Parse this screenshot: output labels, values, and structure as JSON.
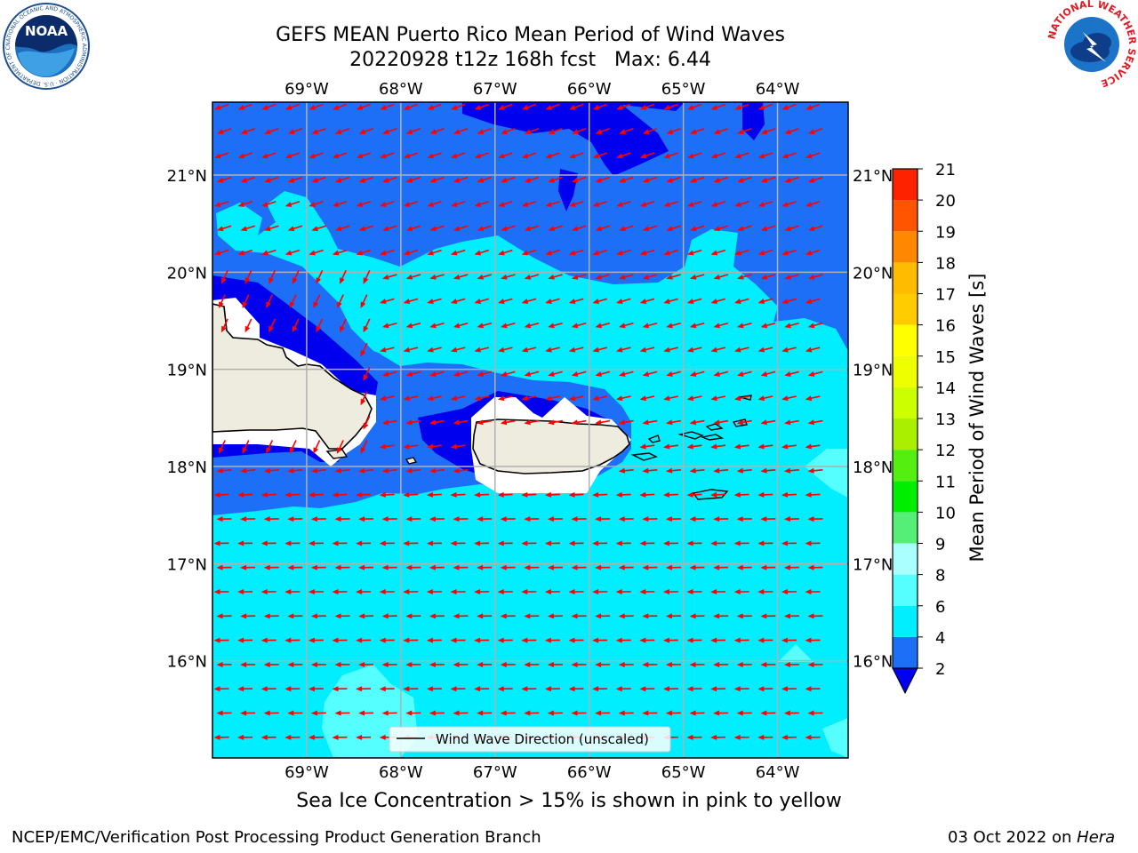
{
  "title": {
    "line1": "GEFS MEAN Puerto Rico Mean Period of Wind Waves",
    "line2": "20220928 t12z 168h fcst   Max: 6.44"
  },
  "map": {
    "lon_labels": [
      "69°W",
      "68°W",
      "67°W",
      "66°W",
      "65°W",
      "64°W"
    ],
    "lat_labels": [
      "21°N",
      "20°N",
      "19°N",
      "18°N",
      "17°N",
      "16°N"
    ],
    "lon_range": [
      -70.0,
      -63.25
    ],
    "lat_range": [
      15.0,
      21.75
    ],
    "legend_label": "Wind Wave Direction (unscaled)",
    "colors": {
      "ocean_2_4": "#1e6ff8",
      "ocean_4_6": "#00eeff",
      "ocean_6_8": "#55ffff",
      "band_low": "#0000ee",
      "land": "#eeecdf",
      "arrow": "#ff0000"
    }
  },
  "colorbar": {
    "label": "Mean Period of Wind Waves [s]",
    "ticks": [
      "2",
      "4",
      "6",
      "8",
      "9",
      "10",
      "11",
      "12",
      "13",
      "14",
      "15",
      "16",
      "17",
      "18",
      "19",
      "20",
      "21"
    ],
    "colors": [
      "#1e6ff8",
      "#00eeff",
      "#55ffff",
      "#aaffff",
      "#55ee77",
      "#00ee00",
      "#55ee11",
      "#aaee00",
      "#ccff00",
      "#eeff00",
      "#ffff00",
      "#ffcc00",
      "#ffbb00",
      "#ff8800",
      "#ff5500",
      "#ff2200",
      "#ff0000"
    ],
    "extend_color": "#0000ee"
  },
  "subtitle": "Sea Ice Concentration > 15% is shown in pink to yellow",
  "footer": {
    "left": "NCEP/EMC/Verification Post Processing Product Generation Branch",
    "date": "03 Oct 2022 on ",
    "machine": "Hera"
  },
  "logos": {
    "noaa_text": "NOAA",
    "noaa_ring": "NATIONAL OCEANIC AND ATMOSPHERIC ADMINISTRATION · U.S. DEPARTMENT OF COMMERCE",
    "nws_ring": "NATIONAL WEATHER SERVICE"
  }
}
